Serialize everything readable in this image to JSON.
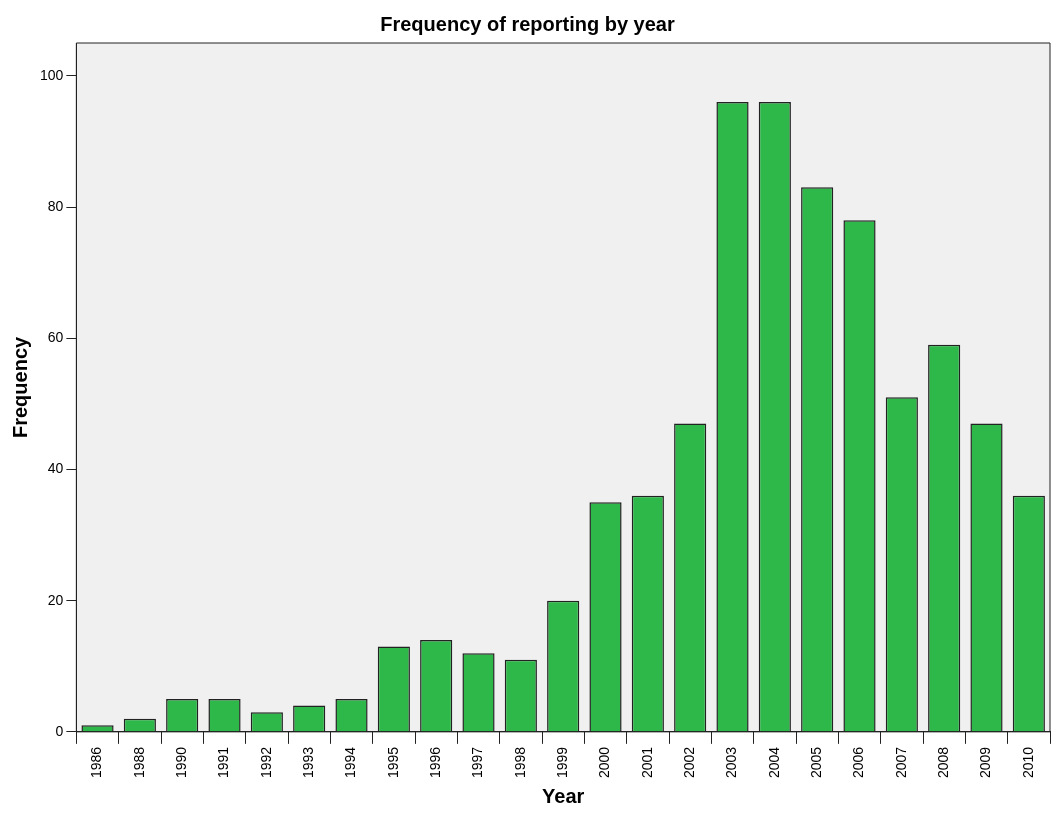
{
  "chart_data": {
    "type": "bar",
    "title": "Frequency of reporting by year",
    "xlabel": "Year",
    "ylabel": "Frequency",
    "categories": [
      "1986",
      "1988",
      "1990",
      "1991",
      "1992",
      "1993",
      "1994",
      "1995",
      "1996",
      "1997",
      "1998",
      "1999",
      "2000",
      "2001",
      "2002",
      "2003",
      "2004",
      "2005",
      "2006",
      "2007",
      "2008",
      "2009",
      "2010"
    ],
    "values": [
      1,
      2,
      5,
      5,
      3,
      4,
      5,
      13,
      14,
      12,
      11,
      20,
      35,
      36,
      47,
      96,
      96,
      83,
      78,
      51,
      59,
      47,
      36
    ],
    "color": "#2eb84a",
    "ylim": [
      0,
      105
    ],
    "yticks": [
      0,
      20,
      40,
      60,
      80,
      100
    ],
    "grid": false,
    "legend": false
  }
}
